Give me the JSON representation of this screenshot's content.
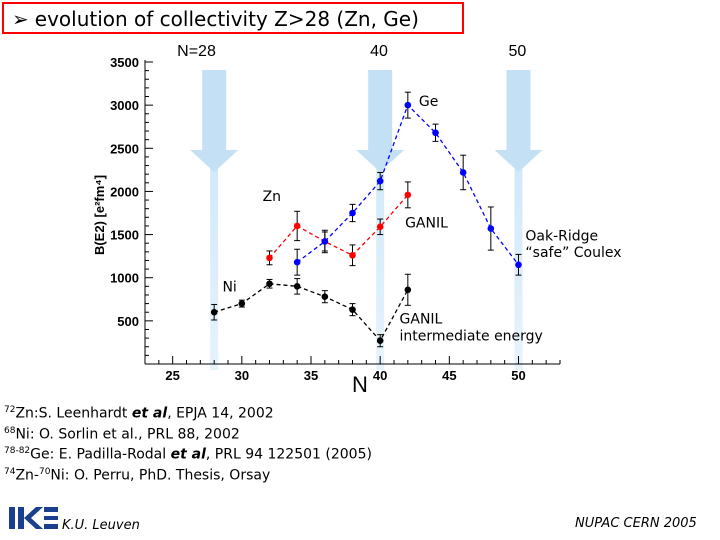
{
  "slide": {
    "title": "evolution of collectivity Z>28 (Zn, Ge)",
    "references": [
      {
        "sup": "72",
        "text": "Zn:S. Leenhardt ",
        "em": "et al",
        "rest": ", EPJA 14, 2002"
      },
      {
        "sup": "68",
        "text": "Ni: O. Sorlin et al., PRL 88, 2002",
        "em": "",
        "rest": ""
      },
      {
        "sup": "78-82",
        "text": "Ge: E. Padilla-Rodal ",
        "em": "et al",
        "rest": ", PRL 94 122501 (2005)"
      },
      {
        "sup": "74",
        "text": "Zn-",
        "em": "",
        "rest": "",
        "sup2": "70",
        "text2": "Ni: O. Perru, PhD. Thesis, Orsay"
      }
    ],
    "footer_left": "K.U. Leuven",
    "footer_right": "NUPAC CERN 2005",
    "logo_text": "IKS"
  },
  "chart_data": {
    "type": "scatter",
    "xlabel": "N",
    "ylabel": "B(E2) [e²fm⁴]",
    "xlim": [
      23,
      53
    ],
    "ylim": [
      0,
      3500
    ],
    "xticks": [
      25,
      30,
      35,
      40,
      45,
      50
    ],
    "yticks": [
      500,
      1000,
      1500,
      2000,
      2500,
      3000,
      3500
    ],
    "magic_lines": [
      {
        "N": 28,
        "label": "N=28"
      },
      {
        "N": 40,
        "label": "40"
      },
      {
        "N": 50,
        "label": "50"
      }
    ],
    "series": [
      {
        "name": "Ni",
        "color": "#000000",
        "points": [
          [
            28,
            600,
            90
          ],
          [
            30,
            700,
            40
          ],
          [
            32,
            930,
            50
          ],
          [
            34,
            900,
            90
          ],
          [
            36,
            780,
            70
          ],
          [
            38,
            630,
            70
          ],
          [
            40,
            270,
            70
          ],
          [
            42,
            860,
            180
          ]
        ]
      },
      {
        "name": "Zn",
        "color": "#ff0000",
        "points": [
          [
            32,
            1230,
            80
          ],
          [
            34,
            1600,
            170
          ],
          [
            36,
            1420,
            130
          ],
          [
            38,
            1260,
            120
          ],
          [
            40,
            1590,
            90
          ],
          [
            42,
            1960,
            150
          ]
        ]
      },
      {
        "name": "Ge",
        "color": "#0000ff",
        "points": [
          [
            34,
            1180,
            150
          ],
          [
            36,
            1420,
            110
          ],
          [
            38,
            1750,
            100
          ],
          [
            40,
            2120,
            100
          ],
          [
            42,
            3000,
            150
          ],
          [
            44,
            2680,
            100
          ],
          [
            46,
            2220,
            200
          ],
          [
            48,
            1570,
            250
          ],
          [
            50,
            1150,
            120
          ]
        ]
      }
    ],
    "annotations": [
      {
        "text": "Ge",
        "N": 42.8,
        "B": 2990
      },
      {
        "text": "Zn",
        "N": 31.5,
        "B": 1890
      },
      {
        "text": "Ni",
        "N": 28.6,
        "B": 840
      },
      {
        "text": "GANIL",
        "N": 41.8,
        "B": 1580
      },
      {
        "text": "Oak-Ridge",
        "N": 50.5,
        "B": 1430
      },
      {
        "text": "“safe” Coulex",
        "N": 50.5,
        "B": 1240
      },
      {
        "text": "GANIL",
        "N": 41.4,
        "B": 470
      },
      {
        "text": "intermediate energy",
        "N": 41.4,
        "B": 270
      }
    ]
  }
}
